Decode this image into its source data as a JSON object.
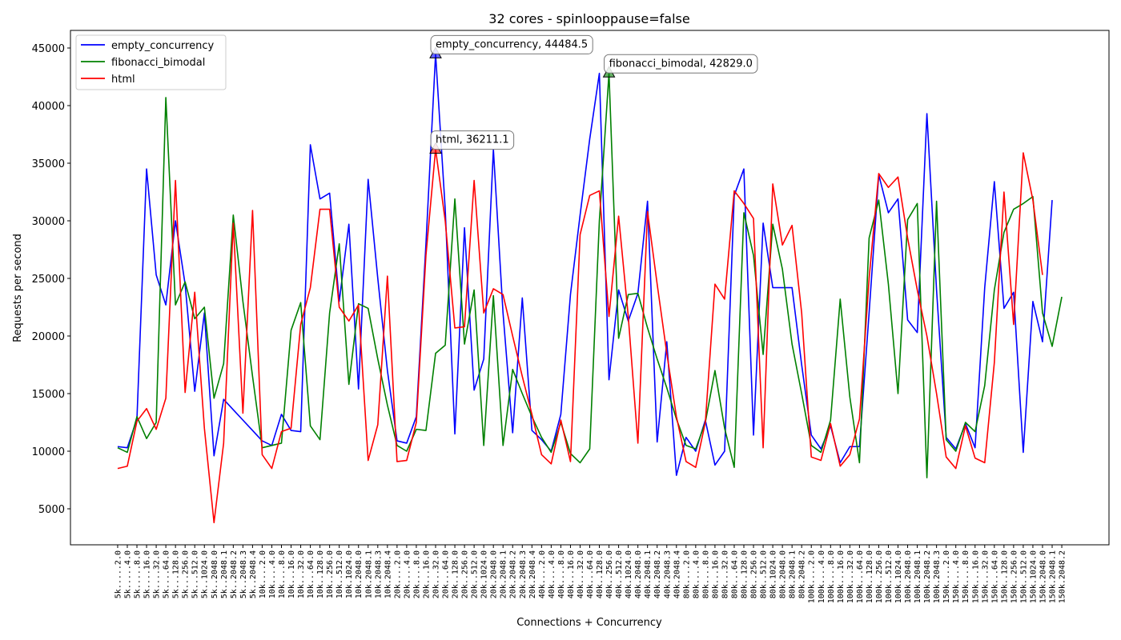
{
  "chart_data": {
    "type": "line",
    "title": "32 cores - spinlooppause=false",
    "xlabel": "Connections + Concurrency",
    "ylabel": "Requests per second",
    "categories": [
      "5k.....2.0",
      "5k.....4.0",
      "5k.....8.0",
      "5k....16.0",
      "5k....32.0",
      "5k....64.0",
      "5k...128.0",
      "5k...256.0",
      "5k...512.0",
      "5k..1024.0",
      "5k..2048.0",
      "5k..2048.1",
      "5k..2048.2",
      "5k..2048.3",
      "5k..2048.4",
      "10k....2.0",
      "10k....4.0",
      "10k....8.0",
      "10k...16.0",
      "10k...32.0",
      "10k...64.0",
      "10k..128.0",
      "10k..256.0",
      "10k..512.0",
      "10k.1024.0",
      "10k.2048.0",
      "10k.2048.1",
      "10k.2048.3",
      "10k.2048.4",
      "20k....2.0",
      "20k....4.0",
      "20k....8.0",
      "20k...16.0",
      "20k...32.0",
      "20k...64.0",
      "20k..128.0",
      "20k..256.0",
      "20k..512.0",
      "20k.1024.0",
      "20k.2048.0",
      "20k.2048.1",
      "20k.2048.2",
      "20k.2048.3",
      "20k.2048.4",
      "40k....2.0",
      "40k....4.0",
      "40k....8.0",
      "40k...16.0",
      "40k...32.0",
      "40k...64.0",
      "40k..128.0",
      "40k..256.0",
      "40k..512.0",
      "40k.1024.0",
      "40k.2048.0",
      "40k.2048.1",
      "40k.2048.2",
      "40k.2048.3",
      "40k.2048.4",
      "80k....2.0",
      "80k....4.0",
      "80k....8.0",
      "80k...16.0",
      "80k...32.0",
      "80k...64.0",
      "80k..128.0",
      "80k..256.0",
      "80k..512.0",
      "80k.1024.0",
      "80k.2048.0",
      "80k.2048.1",
      "80k.2048.2",
      "100k....2.0",
      "100k....4.0",
      "100k....8.0",
      "100k...16.0",
      "100k...32.0",
      "100k...64.0",
      "100k..128.0",
      "100k..256.0",
      "100k..512.0",
      "100k.1024.0",
      "100k.2048.0",
      "100k.2048.1",
      "100k.2048.2",
      "100k.2048.3",
      "150k....2.0",
      "150k....4.0",
      "150k....8.0",
      "150k...16.0",
      "150k...32.0",
      "150k...64.0",
      "150k..128.0",
      "150k..256.0",
      "150k..512.0",
      "150k.1024.0",
      "150k.2048.0",
      "150k.2048.1",
      "150k.2048.2"
    ],
    "series": [
      {
        "name": "empty_concurrency",
        "color": "#0000ff",
        "values": [
          10400,
          10300,
          12800,
          34500,
          25300,
          22700,
          30000,
          24500,
          15200,
          22000,
          9600,
          14500,
          13600,
          12700,
          11800,
          10900,
          10500,
          13200,
          11800,
          11700,
          36600,
          31900,
          32400,
          23000,
          29700,
          15400,
          33600,
          25000,
          17000,
          10900,
          10700,
          13000,
          28000,
          44484.5,
          31000,
          11500,
          29400,
          15300,
          18000,
          36200,
          22000,
          11600,
          23300,
          11800,
          11000,
          10000,
          13200,
          23600,
          30500,
          37100,
          42800,
          16200,
          24000,
          21300,
          23700,
          31700,
          10800,
          19500,
          7900,
          11200,
          10000,
          12700,
          8800,
          10000,
          32200,
          34500,
          11400,
          29800,
          24200,
          24200,
          24200,
          17500,
          11400,
          10200,
          12200,
          9000,
          10400,
          10400,
          22000,
          34000,
          30700,
          31900,
          21400,
          20300,
          39300,
          24000,
          11200,
          10200,
          12400,
          10300,
          24200,
          33400,
          22400,
          23800,
          9900,
          23000,
          19500,
          31800,
          null
        ]
      },
      {
        "name": "fibonacci_bimodal",
        "color": "#008000",
        "values": [
          10300,
          9900,
          13000,
          11100,
          12500,
          40700,
          22700,
          24700,
          21500,
          22500,
          14600,
          17600,
          30500,
          23000,
          16500,
          10300,
          10500,
          10700,
          20500,
          22900,
          12200,
          11000,
          22000,
          28000,
          15800,
          22800,
          22400,
          18000,
          14000,
          10500,
          10000,
          11900,
          11800,
          18500,
          19200,
          31900,
          19300,
          24000,
          10500,
          23500,
          10500,
          17100,
          15000,
          13000,
          11200,
          9900,
          12500,
          9800,
          9000,
          10200,
          30000,
          42829,
          19800,
          23600,
          23700,
          20700,
          18000,
          15500,
          12800,
          10500,
          10200,
          12500,
          17000,
          12000,
          8600,
          30700,
          27000,
          18400,
          29700,
          25800,
          19300,
          15000,
          10500,
          9900,
          12700,
          23200,
          14700,
          9000,
          28500,
          31800,
          24500,
          15000,
          30100,
          31500,
          7700,
          31700,
          11000,
          10000,
          12500,
          11700,
          15700,
          24000,
          29000,
          31000,
          31500,
          32100,
          22000,
          19100,
          23400
        ]
      },
      {
        "name": "html",
        "color": "#ff0000",
        "values": [
          8500,
          8700,
          12600,
          13700,
          11900,
          14600,
          33500,
          15100,
          23800,
          12000,
          3800,
          10700,
          29800,
          13300,
          30900,
          9700,
          8500,
          11700,
          12000,
          21000,
          24200,
          31000,
          31000,
          22500,
          21300,
          22700,
          9200,
          12300,
          25200,
          9100,
          9200,
          12500,
          27000,
          36211.1,
          30000,
          20700,
          20800,
          33500,
          22000,
          24100,
          23600,
          20000,
          16500,
          13200,
          9700,
          8900,
          12700,
          9100,
          28800,
          32200,
          32600,
          21700,
          30400,
          21700,
          10700,
          30800,
          24500,
          18500,
          13000,
          9100,
          8600,
          12500,
          24500,
          23200,
          32600,
          31500,
          30200,
          10300,
          33200,
          27900,
          29600,
          22000,
          9500,
          9200,
          12400,
          8700,
          9700,
          12800,
          25000,
          34100,
          32900,
          33800,
          28500,
          24000,
          20000,
          15000,
          9500,
          8500,
          12200,
          9400,
          9000,
          17700,
          32500,
          21000,
          35900,
          31800,
          25300,
          null,
          null
        ]
      }
    ],
    "annotations": [
      "empty_concurrency, 44484.5",
      "fibonacci_bimodal, 42829.0",
      "html, 36211.1"
    ],
    "ylim": [
      1875,
      46528
    ],
    "yticks": [
      5000,
      10000,
      15000,
      20000,
      25000,
      30000,
      35000,
      40000,
      45000
    ],
    "grid": false,
    "legend": "upper left"
  }
}
